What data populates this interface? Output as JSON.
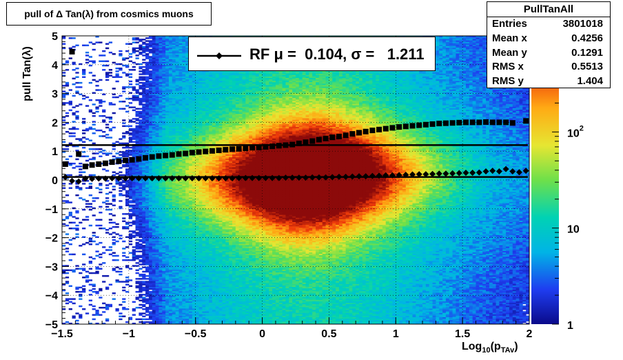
{
  "title": "pull of Δ Tan(λ) from cosmics muons",
  "stats": {
    "name": "PullTanAll",
    "rows": [
      {
        "label": "Entries",
        "value": "3801018"
      },
      {
        "label": "Mean x",
        "value": "0.4256"
      },
      {
        "label": "Mean y",
        "value": "0.1291"
      },
      {
        "label": "RMS x",
        "value": "0.5513"
      },
      {
        "label": "RMS y",
        "value": "1.404"
      }
    ]
  },
  "legend": {
    "text": "RF μ =  0.104, σ =   1.211"
  },
  "colorbar": {
    "ticks": [
      {
        "value": 1,
        "label": "1"
      },
      {
        "value": 10,
        "label": "10"
      },
      {
        "value": 100,
        "label": "10",
        "sup": "2"
      }
    ]
  },
  "chart_data": {
    "type": "heatmap",
    "title": "pull of Δ Tan(λ) from cosmics muons",
    "xlabel": "Log10(pTAv)",
    "xlabel_main": "Log",
    "xlabel_sub1": "10",
    "xlabel_mid": "(p",
    "xlabel_sub2": "TAv",
    "xlabel_end": ")",
    "ylabel": "pull Tan(λ)",
    "xlim": [
      -1.5,
      2
    ],
    "ylim": [
      -5,
      5
    ],
    "z_scale": "log",
    "zlim": [
      1,
      1000
    ],
    "grid": true,
    "x_ticks": [
      {
        "v": -1.5,
        "label": "−1.5"
      },
      {
        "v": -1,
        "label": "−1"
      },
      {
        "v": -0.5,
        "label": "−0.5"
      },
      {
        "v": 0,
        "label": "0"
      },
      {
        "v": 0.5,
        "label": "0.5"
      },
      {
        "v": 1,
        "label": "1"
      },
      {
        "v": 1.5,
        "label": "1.5"
      },
      {
        "v": 2,
        "label": "2"
      }
    ],
    "y_ticks": [
      {
        "v": -5,
        "label": "−5"
      },
      {
        "v": -4,
        "label": "−4"
      },
      {
        "v": -3,
        "label": "−3"
      },
      {
        "v": -2,
        "label": "−2"
      },
      {
        "v": -1,
        "label": "−1"
      },
      {
        "v": 0,
        "label": "0"
      },
      {
        "v": 1,
        "label": "1"
      },
      {
        "v": 2,
        "label": "2"
      },
      {
        "v": 3,
        "label": "3"
      },
      {
        "v": 4,
        "label": "4"
      },
      {
        "v": 5,
        "label": "5"
      }
    ],
    "lines": [
      {
        "y": 0.104
      },
      {
        "y": 1.211
      }
    ],
    "series": [
      {
        "marker": "diamond",
        "x": [
          -1.475,
          -1.425,
          -1.375,
          -1.325,
          -1.275,
          -1.225,
          -1.175,
          -1.125,
          -1.075,
          -1.025,
          -0.975,
          -0.925,
          -0.875,
          -0.825,
          -0.775,
          -0.725,
          -0.675,
          -0.625,
          -0.575,
          -0.525,
          -0.475,
          -0.425,
          -0.375,
          -0.325,
          -0.275,
          -0.225,
          -0.175,
          -0.125,
          -0.075,
          -0.025,
          0.025,
          0.075,
          0.125,
          0.175,
          0.225,
          0.275,
          0.325,
          0.375,
          0.425,
          0.475,
          0.525,
          0.575,
          0.625,
          0.675,
          0.725,
          0.775,
          0.825,
          0.875,
          0.925,
          0.975,
          1.025,
          1.075,
          1.125,
          1.175,
          1.225,
          1.275,
          1.325,
          1.375,
          1.425,
          1.475,
          1.525,
          1.575,
          1.625,
          1.675,
          1.725,
          1.775,
          1.825,
          1.875,
          1.925,
          1.975
        ],
        "y": [
          0.1,
          -0.03,
          -0.05,
          0.05,
          0.04,
          0.05,
          0.05,
          0.06,
          0.06,
          0.06,
          0.06,
          0.06,
          0.06,
          0.06,
          0.06,
          0.06,
          0.06,
          0.06,
          0.06,
          0.06,
          0.06,
          0.06,
          0.06,
          0.06,
          0.06,
          0.06,
          0.07,
          0.07,
          0.07,
          0.07,
          0.07,
          0.07,
          0.07,
          0.08,
          0.08,
          0.08,
          0.08,
          0.09,
          0.09,
          0.09,
          0.1,
          0.11,
          0.11,
          0.12,
          0.13,
          0.13,
          0.14,
          0.15,
          0.16,
          0.16,
          0.17,
          0.18,
          0.19,
          0.2,
          0.2,
          0.21,
          0.22,
          0.22,
          0.23,
          0.24,
          0.25,
          0.25,
          0.26,
          0.3,
          0.32,
          0.3,
          0.38,
          0.3,
          0.27,
          0.32
        ]
      },
      {
        "marker": "square",
        "x": [
          -1.475,
          -1.425,
          -1.375,
          -1.325,
          -1.275,
          -1.225,
          -1.175,
          -1.125,
          -1.075,
          -1.025,
          -0.975,
          -0.925,
          -0.875,
          -0.825,
          -0.775,
          -0.725,
          -0.675,
          -0.625,
          -0.575,
          -0.525,
          -0.475,
          -0.425,
          -0.375,
          -0.325,
          -0.275,
          -0.225,
          -0.175,
          -0.125,
          -0.075,
          -0.025,
          0.025,
          0.075,
          0.125,
          0.175,
          0.225,
          0.275,
          0.325,
          0.375,
          0.425,
          0.475,
          0.525,
          0.575,
          0.625,
          0.675,
          0.725,
          0.775,
          0.825,
          0.875,
          0.925,
          0.975,
          1.025,
          1.075,
          1.125,
          1.175,
          1.225,
          1.275,
          1.325,
          1.375,
          1.425,
          1.475,
          1.525,
          1.575,
          1.625,
          1.675,
          1.725,
          1.775,
          1.825,
          1.875,
          1.975
        ],
        "y": [
          0.55,
          4.45,
          0.9,
          0.47,
          0.52,
          0.55,
          0.58,
          0.62,
          0.65,
          0.68,
          0.7,
          0.73,
          0.77,
          0.8,
          0.83,
          0.85,
          0.87,
          0.9,
          0.92,
          0.95,
          0.97,
          0.99,
          1.01,
          1.03,
          1.05,
          1.07,
          1.08,
          1.1,
          1.12,
          1.13,
          1.15,
          1.17,
          1.19,
          1.21,
          1.23,
          1.27,
          1.31,
          1.35,
          1.4,
          1.44,
          1.48,
          1.51,
          1.55,
          1.6,
          1.64,
          1.68,
          1.72,
          1.75,
          1.78,
          1.81,
          1.84,
          1.86,
          1.88,
          1.9,
          1.92,
          1.94,
          1.96,
          1.97,
          1.98,
          1.99,
          2.0,
          2.0,
          2.0,
          2.01,
          2.0,
          2.0,
          2.0,
          1.98,
          2.05
        ]
      }
    ]
  }
}
